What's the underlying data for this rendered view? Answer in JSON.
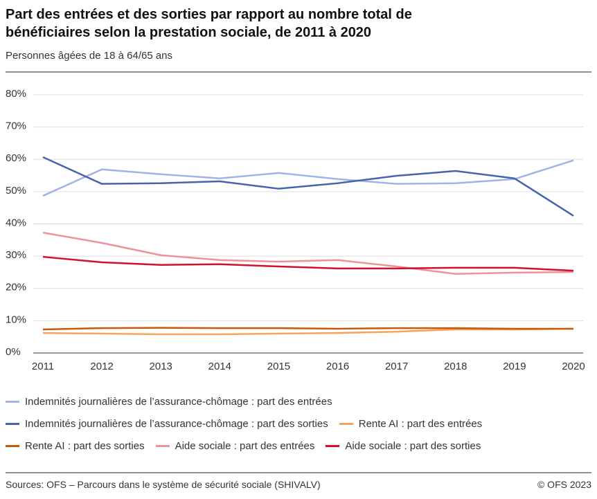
{
  "chart_data": {
    "type": "line",
    "title": "Part des entrées et des sorties par rapport au nombre total de bénéficiaires selon la prestation sociale, de 2011 à 2020",
    "subtitle": "Personnes âgées de 18 à 64/65 ans",
    "categories": [
      "2011",
      "2012",
      "2013",
      "2014",
      "2015",
      "2016",
      "2017",
      "2018",
      "2019",
      "2020"
    ],
    "series": [
      {
        "name": "Indemnités journalières de l’assurance-chômage : part des entrées",
        "color": "#9fb3e6",
        "values": [
          48.7,
          56.9,
          55.4,
          54.1,
          55.8,
          53.9,
          52.4,
          52.6,
          53.9,
          59.7
        ]
      },
      {
        "name": "Indemnités journalières de l’assurance-chômage : part des sorties",
        "color": "#4763b0",
        "values": [
          60.7,
          52.4,
          52.6,
          53.2,
          50.9,
          52.6,
          54.9,
          56.4,
          54.1,
          42.5
        ]
      },
      {
        "name": "Rente AI : part des entrées",
        "color": "#f7a25a",
        "values": [
          6.2,
          6.0,
          5.8,
          5.8,
          6.0,
          6.2,
          6.6,
          7.3,
          7.3,
          7.5
        ]
      },
      {
        "name": "Rente AI : part des sorties",
        "color": "#c8590a",
        "values": [
          7.3,
          7.7,
          7.8,
          7.7,
          7.7,
          7.5,
          7.7,
          7.7,
          7.5,
          7.5
        ]
      },
      {
        "name": "Aide sociale : part des entrées",
        "color": "#f0919a",
        "values": [
          37.3,
          34.1,
          30.3,
          28.8,
          28.3,
          28.8,
          26.8,
          24.5,
          24.9,
          25.1
        ]
      },
      {
        "name": "Aide sociale : part des sorties",
        "color": "#d0112b",
        "values": [
          29.8,
          28.1,
          27.3,
          27.5,
          26.8,
          26.2,
          26.2,
          26.4,
          26.4,
          25.5
        ]
      }
    ],
    "ylim": [
      0,
      80
    ],
    "yticks": [
      {
        "value": 0,
        "label": "0%"
      },
      {
        "value": 10,
        "label": "10%"
      },
      {
        "value": 20,
        "label": "20%"
      },
      {
        "value": 30,
        "label": "30%"
      },
      {
        "value": 40,
        "label": "40%"
      },
      {
        "value": 50,
        "label": "50%"
      },
      {
        "value": 60,
        "label": "60%"
      },
      {
        "value": 70,
        "label": "70%"
      },
      {
        "value": 80,
        "label": "80%"
      }
    ],
    "grid": true,
    "source": "Sources: OFS – Parcours dans le système de sécurité sociale (SHIVALV)",
    "copyright": "© OFS 2023"
  }
}
